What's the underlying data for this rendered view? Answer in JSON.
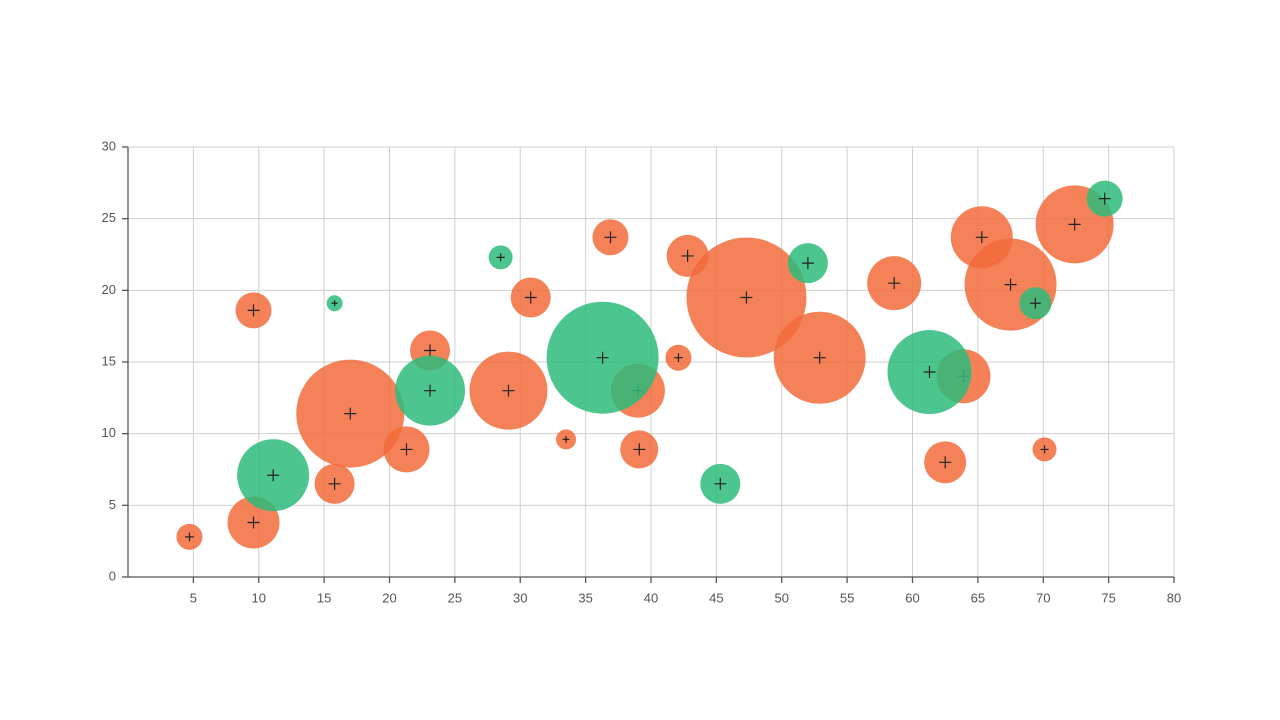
{
  "chart_data": {
    "type": "bubble",
    "xlim": [
      0,
      80
    ],
    "xticks": [
      5,
      10,
      15,
      20,
      25,
      30,
      35,
      40,
      45,
      50,
      55,
      60,
      65,
      70,
      75,
      80
    ],
    "ylim": [
      0,
      30
    ],
    "yticks": [
      0,
      5,
      10,
      15,
      20,
      25,
      30
    ],
    "grid": true,
    "series": [
      {
        "color": "#f26b3a",
        "x": [
          4.7,
          9.6,
          9.6,
          17.0,
          15.8,
          21.3,
          23.1,
          29.1,
          30.8,
          33.5,
          36.9,
          39.0,
          39.1,
          42.1,
          42.8,
          47.3,
          52.9,
          58.6,
          62.5,
          63.9,
          65.3,
          67.5,
          70.1,
          72.4
        ],
        "values": [
          2.8,
          18.6,
          3.8,
          11.4,
          6.5,
          8.9,
          15.8,
          13.0,
          19.5,
          9.6,
          23.7,
          13.0,
          8.9,
          15.3,
          22.4,
          19.5,
          15.3,
          20.5,
          8.0,
          14.0,
          23.7,
          20.4,
          8.9,
          24.6
        ],
        "sizes": [
          13,
          18,
          26,
          54,
          20,
          23,
          20,
          39,
          20,
          10,
          18,
          27,
          19,
          13,
          21,
          60,
          46,
          27,
          21,
          27,
          31,
          46,
          12,
          39
        ]
      },
      {
        "color": "#2dbb7a",
        "x": [
          11.1,
          15.8,
          23.1,
          28.5,
          36.3,
          45.3,
          52.0,
          61.3,
          69.4,
          74.7
        ],
        "values": [
          7.1,
          19.1,
          13.0,
          22.3,
          15.3,
          6.5,
          21.9,
          14.3,
          19.1,
          26.4
        ],
        "sizes": [
          36,
          8,
          35,
          12,
          56,
          20,
          20,
          42,
          16,
          18
        ]
      }
    ]
  }
}
